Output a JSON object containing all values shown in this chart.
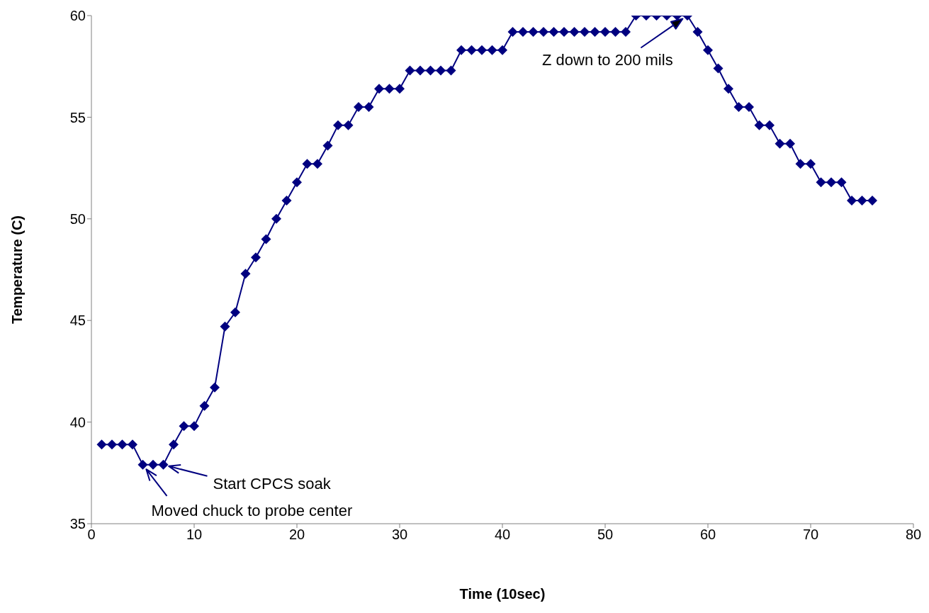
{
  "chart_data": {
    "type": "line",
    "xlabel": "Time (10sec)",
    "ylabel": "Temperature (C)",
    "x": [
      1,
      2,
      3,
      4,
      5,
      6,
      7,
      8,
      9,
      10,
      11,
      12,
      13,
      14,
      15,
      16,
      17,
      18,
      19,
      20,
      21,
      22,
      23,
      24,
      25,
      26,
      27,
      28,
      29,
      30,
      31,
      32,
      33,
      34,
      35,
      36,
      37,
      38,
      39,
      40,
      41,
      42,
      43,
      44,
      45,
      46,
      47,
      48,
      49,
      50,
      51,
      52,
      53,
      54,
      55,
      56,
      57,
      58,
      59,
      60,
      61,
      62,
      63,
      64,
      65,
      66,
      67,
      68,
      69,
      70,
      71,
      72,
      73,
      74,
      75,
      76
    ],
    "series": [
      {
        "color": "#000080",
        "values": [
          38.9,
          38.9,
          38.9,
          38.9,
          37.9,
          37.9,
          37.9,
          38.9,
          39.8,
          39.8,
          40.8,
          41.7,
          44.7,
          45.4,
          47.3,
          48.1,
          49.0,
          50.0,
          50.9,
          51.8,
          52.7,
          52.7,
          53.6,
          54.6,
          54.6,
          55.5,
          55.5,
          56.4,
          56.4,
          56.4,
          57.3,
          57.3,
          57.3,
          57.3,
          57.3,
          58.3,
          58.3,
          58.3,
          58.3,
          58.3,
          59.2,
          59.2,
          59.2,
          59.2,
          59.2,
          59.2,
          59.2,
          59.2,
          59.2,
          59.2,
          59.2,
          59.2,
          60.0,
          60.0,
          60.0,
          60.0,
          60.0,
          60.0,
          59.2,
          58.3,
          57.4,
          56.4,
          55.5,
          55.5,
          54.6,
          54.6,
          53.7,
          53.7,
          52.7,
          52.7,
          51.8,
          51.8,
          51.8,
          50.9,
          50.9,
          50.9
        ]
      }
    ],
    "xlim": [
      0,
      80
    ],
    "xticks": [
      0,
      10,
      20,
      30,
      40,
      50,
      60,
      70,
      80
    ],
    "ylim": [
      35,
      60
    ],
    "yticks": [
      35,
      40,
      45,
      50,
      55,
      60
    ],
    "grid": false,
    "legend": false,
    "marker": "diamond",
    "line_style": "solid",
    "annotations": [
      {
        "text": "Start CPCS soak",
        "x": 7,
        "y": 37.9
      },
      {
        "text": "Moved chuck to probe center",
        "x": 5,
        "y": 37.9
      },
      {
        "text": "Z down to 200 mils",
        "x": 58,
        "y": 60.0
      }
    ]
  }
}
